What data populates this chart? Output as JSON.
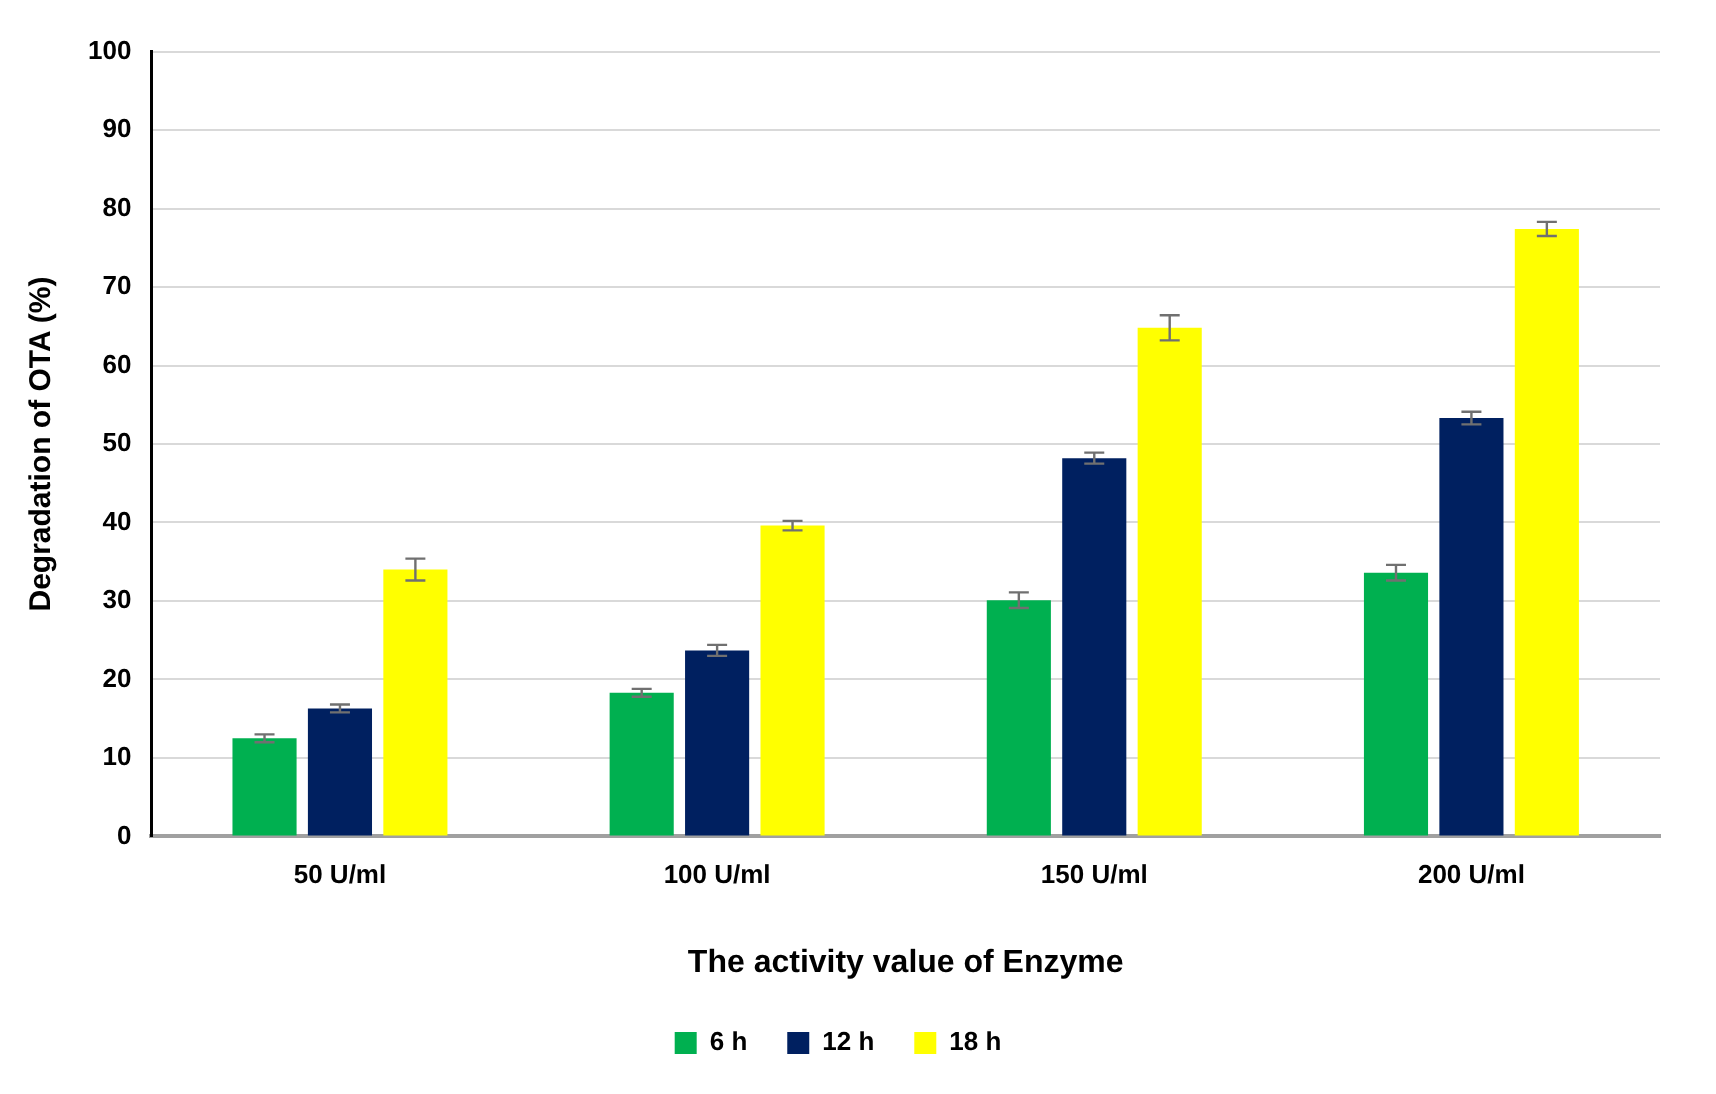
{
  "chart_data": {
    "type": "bar",
    "xlabel": "The activity value of Enzyme",
    "ylabel": "Degradation of OTA (%)",
    "categories": [
      "50 U/ml",
      "100 U/ml",
      "150 U/ml",
      "200 U/ml"
    ],
    "series": [
      {
        "name": "6 h",
        "color": "#00b050",
        "values": [
          12.5,
          18.3,
          30.1,
          33.6
        ],
        "errors": [
          0.5,
          0.5,
          1.0,
          1.0
        ]
      },
      {
        "name": "12 h",
        "color": "#002060",
        "values": [
          16.3,
          23.7,
          48.2,
          53.3
        ],
        "errors": [
          0.5,
          0.7,
          0.7,
          0.8
        ]
      },
      {
        "name": "18 h",
        "color": "#ffff00",
        "values": [
          34,
          39.6,
          64.8,
          77.4
        ],
        "errors": [
          1.4,
          0.6,
          1.6,
          0.9
        ]
      }
    ],
    "ylim": [
      0,
      100
    ],
    "yticks": [
      0,
      10,
      20,
      30,
      40,
      50,
      60,
      70,
      80,
      90,
      100
    ],
    "grid": "y",
    "legend": "bottom"
  }
}
